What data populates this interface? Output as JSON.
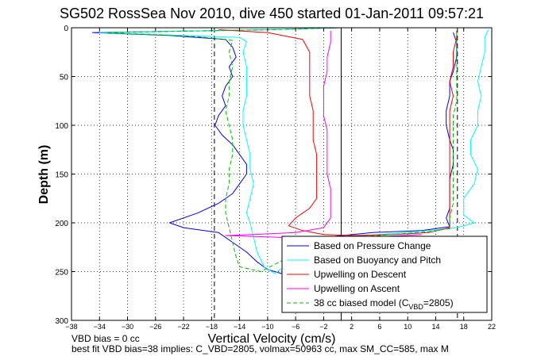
{
  "chart_data": {
    "type": "line",
    "title": "SG502 RossSea Nov 2010, dive 450 started 01-Jan-2011 09:57:21",
    "xlabel": "Vertical Velocity (cm/s)",
    "ylabel": "Depth (m)",
    "xlim": [
      -38,
      22
    ],
    "ylim": [
      0,
      300
    ],
    "y_reversed": true,
    "grid": true,
    "legend_position": "bottom-right",
    "x_ticks": [
      -38,
      -34,
      -30,
      -26,
      -22,
      -18,
      -14,
      -10,
      -6,
      -2,
      2,
      6,
      10,
      14,
      18,
      22
    ],
    "y_ticks": [
      0,
      50,
      100,
      150,
      200,
      250,
      300
    ],
    "x_tick_labels": [
      "−38",
      "−34",
      "−30",
      "−26",
      "−22",
      "−18",
      "−14",
      "−10",
      "−6",
      "−2",
      "2",
      "6",
      "10",
      "14",
      "18",
      "22"
    ],
    "y_tick_labels": [
      "0",
      "50",
      "100",
      "150",
      "200",
      "250",
      "300"
    ],
    "reference_lines": [
      {
        "style": "dashed",
        "x": -17.6,
        "color": "#000000"
      },
      {
        "style": "solid",
        "x": 0.5,
        "color": "#000000"
      },
      {
        "style": "dashed",
        "x": 17.1,
        "color": "#000000"
      }
    ],
    "series": [
      {
        "name": "Based on Pressure Change",
        "color": "#0000ff",
        "style": "solid",
        "points": [
          [
            0.3,
            0
          ],
          [
            -10,
            2
          ],
          [
            -35,
            5
          ],
          [
            -24,
            8
          ],
          [
            -16,
            12
          ],
          [
            -15,
            20
          ],
          [
            -14.5,
            30
          ],
          [
            -15.5,
            40
          ],
          [
            -15,
            50
          ],
          [
            -16,
            60
          ],
          [
            -16.5,
            70
          ],
          [
            -16,
            80
          ],
          [
            -17,
            90
          ],
          [
            -17.5,
            100
          ],
          [
            -16.5,
            110
          ],
          [
            -15,
            120
          ],
          [
            -14,
            130
          ],
          [
            -13,
            140
          ],
          [
            -13,
            150
          ],
          [
            -14,
            160
          ],
          [
            -15,
            170
          ],
          [
            -17,
            180
          ],
          [
            -20,
            190
          ],
          [
            -24,
            200
          ],
          [
            -22,
            205
          ],
          [
            -17,
            210
          ],
          [
            -15,
            220
          ],
          [
            -13,
            230
          ],
          [
            -11.5,
            240
          ],
          [
            -10,
            248
          ],
          [
            -8,
            252
          ],
          [
            -2,
            215
          ],
          [
            5,
            210
          ],
          [
            12,
            208
          ],
          [
            16,
            204
          ],
          [
            15.5,
            195
          ],
          [
            16,
            185
          ],
          [
            16,
            170
          ],
          [
            16,
            155
          ],
          [
            16.5,
            140
          ],
          [
            16.5,
            125
          ],
          [
            16,
            115
          ],
          [
            15.5,
            100
          ],
          [
            15.5,
            85
          ],
          [
            16,
            70
          ],
          [
            16,
            55
          ],
          [
            16.5,
            45
          ],
          [
            17,
            30
          ],
          [
            17,
            15
          ],
          [
            16.5,
            5
          ]
        ]
      },
      {
        "name": "Based on Buoyancy and Pitch",
        "color": "#00ffff",
        "style": "solid",
        "points": [
          [
            0.3,
            0
          ],
          [
            -10,
            2
          ],
          [
            -34,
            5
          ],
          [
            -22,
            8
          ],
          [
            -14,
            10
          ],
          [
            -13,
            14
          ],
          [
            -13.5,
            25
          ],
          [
            -13,
            40
          ],
          [
            -13,
            55
          ],
          [
            -13,
            70
          ],
          [
            -13.5,
            85
          ],
          [
            -13.5,
            100
          ],
          [
            -13,
            115
          ],
          [
            -12.5,
            130
          ],
          [
            -12.5,
            145
          ],
          [
            -12,
            160
          ],
          [
            -12.5,
            175
          ],
          [
            -13,
            190
          ],
          [
            -12.5,
            200
          ],
          [
            -12,
            215
          ],
          [
            -11.5,
            230
          ],
          [
            -10.5,
            245
          ],
          [
            -9,
            252
          ],
          [
            -2,
            216
          ],
          [
            6,
            212
          ],
          [
            13,
            208
          ],
          [
            17,
            205
          ],
          [
            19.5,
            200
          ],
          [
            18,
            192
          ],
          [
            18,
            175
          ],
          [
            19.5,
            160
          ],
          [
            20,
            145
          ],
          [
            19,
            130
          ],
          [
            19,
            115
          ],
          [
            20,
            100
          ],
          [
            20,
            85
          ],
          [
            20.5,
            70
          ],
          [
            20,
            55
          ],
          [
            20.5,
            40
          ],
          [
            21,
            25
          ],
          [
            21,
            10
          ],
          [
            21.5,
            2
          ]
        ]
      },
      {
        "name": "Upwelling on Descent",
        "color": "#ff0000",
        "style": "solid",
        "points": [
          [
            -17,
            2
          ],
          [
            -10,
            5
          ],
          [
            -5,
            12
          ],
          [
            -4,
            25
          ],
          [
            -4,
            40
          ],
          [
            -4,
            55
          ],
          [
            -4,
            70
          ],
          [
            -3.5,
            85
          ],
          [
            -3.5,
            100
          ],
          [
            -3.5,
            115
          ],
          [
            -3,
            130
          ],
          [
            -3,
            145
          ],
          [
            -3,
            160
          ],
          [
            -3,
            175
          ],
          [
            -4,
            185
          ],
          [
            -6,
            195
          ],
          [
            -7,
            203
          ],
          [
            -5,
            208
          ],
          [
            -2,
            212
          ],
          [
            2,
            213
          ],
          [
            8,
            212
          ],
          [
            13,
            210
          ],
          [
            16,
            205
          ],
          [
            16,
            190
          ],
          [
            16,
            175
          ],
          [
            16,
            160
          ],
          [
            16,
            145
          ],
          [
            16,
            130
          ],
          [
            16,
            115
          ],
          [
            16,
            100
          ],
          [
            16,
            85
          ],
          [
            16.5,
            70
          ],
          [
            16,
            55
          ],
          [
            16.5,
            40
          ],
          [
            16.5,
            25
          ],
          [
            17,
            10
          ],
          [
            17,
            3
          ]
        ]
      },
      {
        "name": "Upwelling on Ascent",
        "color": "#ff00ff",
        "style": "solid",
        "points": [
          [
            -1,
            3
          ],
          [
            -1,
            15
          ],
          [
            -1.5,
            30
          ],
          [
            -1.5,
            45
          ],
          [
            -2,
            60
          ],
          [
            -2,
            75
          ],
          [
            -2,
            90
          ],
          [
            -1.5,
            105
          ],
          [
            -1.5,
            120
          ],
          [
            -1.5,
            135
          ],
          [
            -1.5,
            150
          ],
          [
            -1,
            165
          ],
          [
            -1,
            180
          ],
          [
            -1,
            195
          ],
          [
            -2,
            205
          ],
          [
            -6,
            210
          ],
          [
            -12,
            212
          ],
          [
            -16,
            213
          ],
          [
            -8,
            215
          ],
          [
            -2,
            216
          ],
          [
            4,
            215
          ],
          [
            12,
            212
          ]
        ]
      },
      {
        "name": "38 cc biased model (C_VBD=2805)",
        "color": "#00c000",
        "style": "dashed",
        "points": [
          [
            0.3,
            0
          ],
          [
            -10,
            2
          ],
          [
            -33,
            5
          ],
          [
            -20,
            9
          ],
          [
            -15,
            13
          ],
          [
            -15.5,
            25
          ],
          [
            -15,
            40
          ],
          [
            -15.5,
            55
          ],
          [
            -15.5,
            70
          ],
          [
            -16,
            85
          ],
          [
            -15.5,
            100
          ],
          [
            -15,
            115
          ],
          [
            -15,
            130
          ],
          [
            -15.5,
            145
          ],
          [
            -15.5,
            160
          ],
          [
            -16,
            175
          ],
          [
            -16,
            190
          ],
          [
            -15.5,
            205
          ],
          [
            -15,
            220
          ],
          [
            -14.5,
            235
          ],
          [
            -14,
            245
          ],
          [
            -11,
            250
          ],
          [
            -2,
            217
          ],
          [
            6,
            213
          ],
          [
            13,
            209
          ],
          [
            16,
            206
          ],
          [
            16,
            195
          ],
          [
            16.5,
            180
          ],
          [
            16.5,
            165
          ],
          [
            16.5,
            150
          ],
          [
            16.5,
            135
          ],
          [
            16.5,
            120
          ],
          [
            16.5,
            105
          ],
          [
            16.5,
            90
          ],
          [
            17,
            75
          ],
          [
            17,
            60
          ],
          [
            17,
            45
          ],
          [
            17,
            30
          ],
          [
            17,
            15
          ],
          [
            17,
            3
          ]
        ]
      }
    ],
    "legend_entries": [
      "Based on Pressure Change",
      "Based on Buoyancy and Pitch",
      "Upwelling on Descent",
      "Upwelling on Ascent",
      "38 cc biased model (C",
      "VBD",
      "=2805)"
    ]
  },
  "notes": {
    "line1": "VBD bias = 0 cc",
    "line2": "best fit VBD bias=38 implies: C_VBD=2805, volmax=50963 cc, max SM_CC=585, max M"
  }
}
